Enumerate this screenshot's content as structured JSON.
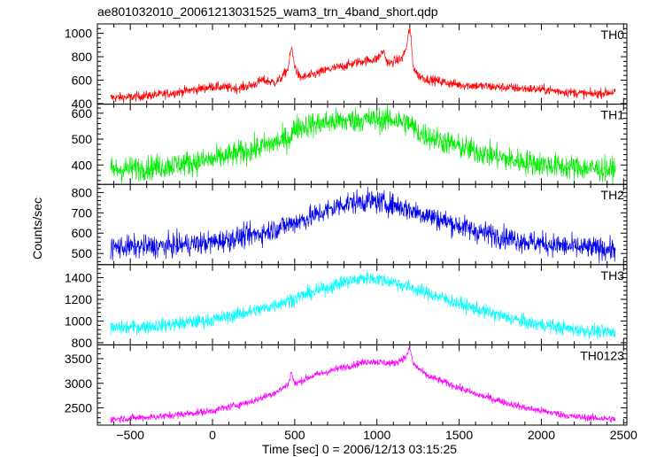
{
  "chart_data": {
    "type": "line",
    "title": "ae801032010_20061213031525_wam3_trn_4band_short.qdp",
    "xlabel": "Time [sec] 0 = 2006/12/13 03:15:25",
    "ylabel": "Counts/sec",
    "xlim": [
      -700,
      2520
    ],
    "x_ticks": [
      -500,
      0,
      500,
      1000,
      1500,
      2000,
      2500
    ],
    "x_tick_labels": [
      "−500",
      "0",
      "500",
      "1000",
      "1500",
      "2000",
      "2500"
    ],
    "grid": false,
    "panels": [
      {
        "name": "TH0",
        "color": "#ff0000",
        "ylim": [
          395,
          1080
        ],
        "y_ticks": [
          400,
          600,
          800,
          1000
        ],
        "y_tick_labels": [
          "400",
          "600",
          "800",
          "1000"
        ],
        "x": [
          -620,
          -500,
          -300,
          -100,
          0,
          150,
          250,
          300,
          380,
          420,
          460,
          480,
          500,
          530,
          600,
          700,
          800,
          900,
          1000,
          1040,
          1060,
          1080,
          1100,
          1150,
          1180,
          1200,
          1210,
          1220,
          1250,
          1300,
          1500,
          2000,
          2300,
          2450
        ],
        "values": [
          450,
          455,
          480,
          520,
          545,
          530,
          560,
          600,
          580,
          620,
          700,
          880,
          720,
          620,
          640,
          690,
          720,
          760,
          780,
          850,
          760,
          740,
          760,
          780,
          880,
          1060,
          900,
          720,
          640,
          610,
          560,
          520,
          480,
          500
        ],
        "noise": 22
      },
      {
        "name": "TH1",
        "color": "#00ee00",
        "ylim": [
          325,
          635
        ],
        "y_ticks": [
          400,
          500,
          600
        ],
        "y_tick_labels": [
          "400",
          "500",
          "600"
        ],
        "x": [
          -620,
          -300,
          0,
          250,
          400,
          480,
          500,
          700,
          900,
          1100,
          1200,
          1250,
          1500,
          1800,
          2100,
          2450
        ],
        "values": [
          380,
          395,
          420,
          460,
          490,
          510,
          545,
          565,
          575,
          575,
          560,
          525,
          470,
          420,
          395,
          380
        ],
        "noise": 26
      },
      {
        "name": "TH2",
        "color": "#0000ee",
        "ylim": [
          445,
          840
        ],
        "y_ticks": [
          500,
          600,
          700,
          800
        ],
        "y_tick_labels": [
          "500",
          "600",
          "700",
          "800"
        ],
        "x": [
          -620,
          -300,
          0,
          300,
          600,
          800,
          950,
          1100,
          1300,
          1600,
          1900,
          2200,
          2450
        ],
        "values": [
          530,
          535,
          555,
          600,
          680,
          745,
          760,
          740,
          690,
          610,
          560,
          530,
          520
        ],
        "noise": 30
      },
      {
        "name": "TH3",
        "color": "#00ffff",
        "ylim": [
          780,
          1520
        ],
        "y_ticks": [
          800,
          1000,
          1200,
          1400
        ],
        "y_tick_labels": [
          "800",
          "1000",
          "1200",
          "1400"
        ],
        "x": [
          -620,
          -300,
          0,
          300,
          600,
          800,
          950,
          1100,
          1300,
          1600,
          1900,
          2200,
          2450
        ],
        "values": [
          930,
          960,
          1010,
          1110,
          1260,
          1360,
          1400,
          1360,
          1260,
          1110,
          990,
          920,
          890
        ],
        "noise": 35
      },
      {
        "name": "TH0123",
        "color": "#ff00ff",
        "ylim": [
          2150,
          3780
        ],
        "y_ticks": [
          2500,
          3000,
          3500
        ],
        "y_tick_labels": [
          "2500",
          "3000",
          "3500"
        ],
        "x": [
          -620,
          -300,
          0,
          250,
          400,
          460,
          480,
          500,
          600,
          800,
          950,
          1100,
          1180,
          1200,
          1220,
          1300,
          1600,
          1900,
          2200,
          2450
        ],
        "values": [
          2270,
          2330,
          2440,
          2640,
          2840,
          2980,
          3230,
          2980,
          3140,
          3330,
          3450,
          3400,
          3540,
          3720,
          3400,
          3160,
          2780,
          2500,
          2320,
          2270
        ],
        "noise": 40
      }
    ]
  }
}
